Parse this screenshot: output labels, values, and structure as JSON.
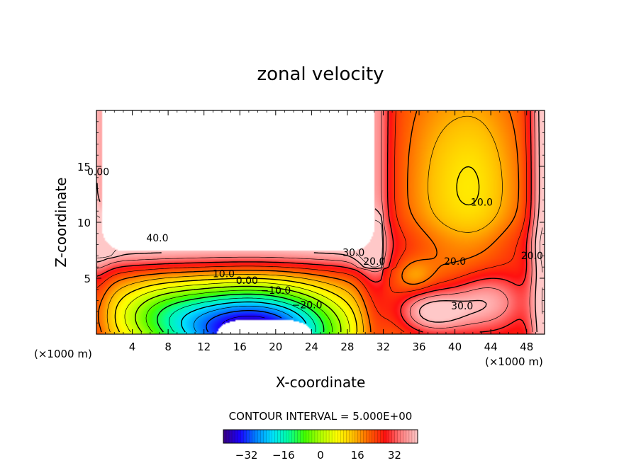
{
  "chart_data": {
    "type": "heatmap",
    "title": "zonal velocity",
    "xlabel": "X-coordinate",
    "ylabel": "Z-coordinate",
    "x_unit_left": "(×1000 m)",
    "x_unit_right": "(×1000 m)",
    "xlim": [
      0,
      50
    ],
    "ylim": [
      0,
      20
    ],
    "x_ticks": [
      4,
      8,
      12,
      16,
      20,
      24,
      28,
      32,
      36,
      40,
      44,
      48
    ],
    "x_tick_labels": [
      "4",
      "8",
      "12",
      "16",
      "20",
      "24",
      "28",
      "32",
      "36",
      "40",
      "44",
      "48"
    ],
    "y_ticks": [
      5,
      10,
      15
    ],
    "y_tick_labels": [
      "5",
      "10",
      "15"
    ],
    "contour_interval_text": "CONTOUR INTERVAL = 5.000E+00",
    "colorbar": {
      "range": [
        -42,
        42
      ],
      "tick_values": [
        -32,
        -16,
        0,
        16,
        32
      ],
      "tick_labels": [
        "−32",
        "−16",
        "0",
        "16",
        "32"
      ]
    },
    "contour_labels": [
      {
        "text": "0.00",
        "x": 0.2,
        "y": 14.2
      },
      {
        "text": "40.0",
        "x": 6.8,
        "y": 8.3
      },
      {
        "text": "30.0",
        "x": 28.7,
        "y": 7.0
      },
      {
        "text": "20.0",
        "x": 31.0,
        "y": 6.2
      },
      {
        "text": "10.0",
        "x": 43.0,
        "y": 11.5
      },
      {
        "text": "20.0",
        "x": 48.6,
        "y": 6.7
      },
      {
        "text": "20.0",
        "x": 40.0,
        "y": 6.2
      },
      {
        "text": "10.0",
        "x": 14.2,
        "y": 5.1
      },
      {
        "text": "0.00",
        "x": 16.8,
        "y": 4.5
      },
      {
        "text": "−10.0",
        "x": 20.0,
        "y": 3.6
      },
      {
        "text": "−20.0",
        "x": 23.5,
        "y": 2.3
      },
      {
        "text": "30.0",
        "x": 40.8,
        "y": 2.2
      }
    ],
    "field_features": [
      {
        "kind": "min",
        "value": -42,
        "x": 17.5,
        "z": 0.2
      },
      {
        "kind": "max",
        "value": 45,
        "x": 36.8,
        "z": 2.2
      },
      {
        "kind": "max",
        "value": 40,
        "x": 43.0,
        "z": 3.0
      },
      {
        "kind": "local_min",
        "value": 8,
        "x": 42.3,
        "z": 17.5
      },
      {
        "kind": "undefined_region",
        "x_range": [
          0,
          31
        ],
        "z_range": [
          7.5,
          20
        ]
      },
      {
        "kind": "undefined_region",
        "x_range": [
          13.5,
          24
        ],
        "z_range": [
          0,
          1.3
        ]
      }
    ],
    "colors": {
      "palette": [
        "#3a0080",
        "#1a00ff",
        "#0080ff",
        "#00e0ff",
        "#00ffa0",
        "#40ff00",
        "#b0ff00",
        "#ffff00",
        "#ffc000",
        "#ff6000",
        "#ff1010",
        "#ff8080",
        "#ffc8c8"
      ]
    }
  }
}
